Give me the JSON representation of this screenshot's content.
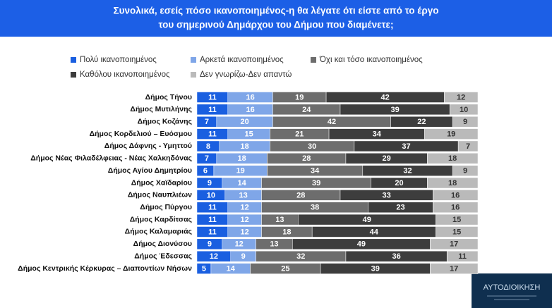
{
  "chart_data": {
    "type": "stacked-bar-horizontal",
    "title": [
      "Συνολικά, εσείς πόσο ικανοποιημένος-η θα λέγατε ότι είστε από το έργο",
      "του σημερινού Δημάρχου του Δήμου που διαμένετε;"
    ],
    "categories": [
      "Δήμος Τήνου",
      "Δήμος Μυτιλήνης",
      "Δήμος Κοζάνης",
      "Δήμος Κορδελιού – Ευόσμου",
      "Δήμος Δάφνης - Υμηττού",
      "Δήμος Νέας Φιλαδέλφειας - Νέας Χαλκηδόνας",
      "Δήμος Αγίου Δημητρίου",
      "Δήμος Χαϊδαρίου",
      "Δήμος Ναυπλιέων",
      "Δήμος Πύργου",
      "Δήμος Καρδίτσας",
      "Δήμος Καλαμαριάς",
      "Δήμος Διονύσου",
      "Δήμος Έδεσσας",
      "Δήμος Κεντρικής Κέρκυρας – Διαποντίων Νήσων"
    ],
    "series": [
      {
        "name": "Πολύ ικανοποιημένος",
        "color": "#1a5fe0",
        "values": [
          11,
          11,
          7,
          11,
          8,
          7,
          6,
          9,
          10,
          11,
          11,
          11,
          9,
          12,
          5
        ]
      },
      {
        "name": "Αρκετά ικανοποιημένος",
        "color": "#7fa6e8",
        "values": [
          16,
          16,
          20,
          15,
          18,
          18,
          19,
          14,
          13,
          12,
          12,
          12,
          12,
          9,
          14
        ]
      },
      {
        "name": "Όχι και τόσο ικανοποιημένος",
        "color": "#6d6d6d",
        "values": [
          19,
          24,
          42,
          21,
          30,
          28,
          34,
          39,
          28,
          38,
          13,
          18,
          13,
          32,
          25
        ]
      },
      {
        "name": "Καθόλου ικανοποιημένος",
        "color": "#3d3d3d",
        "values": [
          42,
          39,
          22,
          34,
          37,
          29,
          32,
          20,
          33,
          23,
          49,
          44,
          49,
          36,
          39
        ]
      },
      {
        "name": "Δεν γνωρίζω-Δεν απαντώ",
        "color": "#bababa",
        "values": [
          12,
          10,
          9,
          19,
          7,
          18,
          9,
          18,
          16,
          16,
          15,
          15,
          17,
          11,
          17
        ]
      }
    ],
    "logo": {
      "name": "ΑΥΤΟΔΙΟΙΚΗΣΗ"
    }
  }
}
